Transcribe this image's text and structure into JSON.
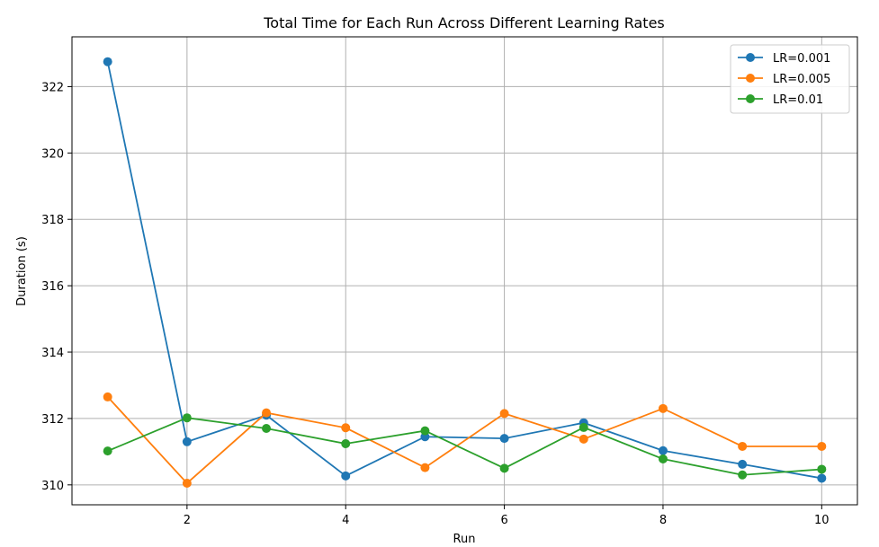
{
  "chart_data": {
    "type": "line",
    "title": "Total Time for Each Run Across Different Learning Rates",
    "xlabel": "Run",
    "ylabel": "Duration (s)",
    "xlim": [
      0.55,
      10.45
    ],
    "ylim": [
      309.4,
      323.5
    ],
    "xticks": [
      2,
      4,
      6,
      8,
      10
    ],
    "yticks": [
      310,
      312,
      314,
      316,
      318,
      320,
      322
    ],
    "grid": true,
    "legend_position": "top-right",
    "x": [
      1,
      2,
      3,
      4,
      5,
      6,
      7,
      8,
      9,
      10
    ],
    "series": [
      {
        "name": "LR=0.001",
        "color": "#1f77b4",
        "values": [
          322.75,
          311.3,
          312.1,
          310.27,
          311.45,
          311.4,
          311.87,
          311.03,
          310.62,
          310.2
        ]
      },
      {
        "name": "LR=0.005",
        "color": "#ff7f0e",
        "values": [
          312.65,
          310.05,
          312.17,
          311.72,
          310.52,
          312.15,
          311.38,
          312.3,
          311.16,
          311.16
        ]
      },
      {
        "name": "LR=0.01",
        "color": "#2ca02c",
        "values": [
          311.02,
          312.02,
          311.7,
          311.24,
          311.63,
          310.5,
          311.73,
          310.78,
          310.3,
          310.47
        ]
      }
    ]
  }
}
